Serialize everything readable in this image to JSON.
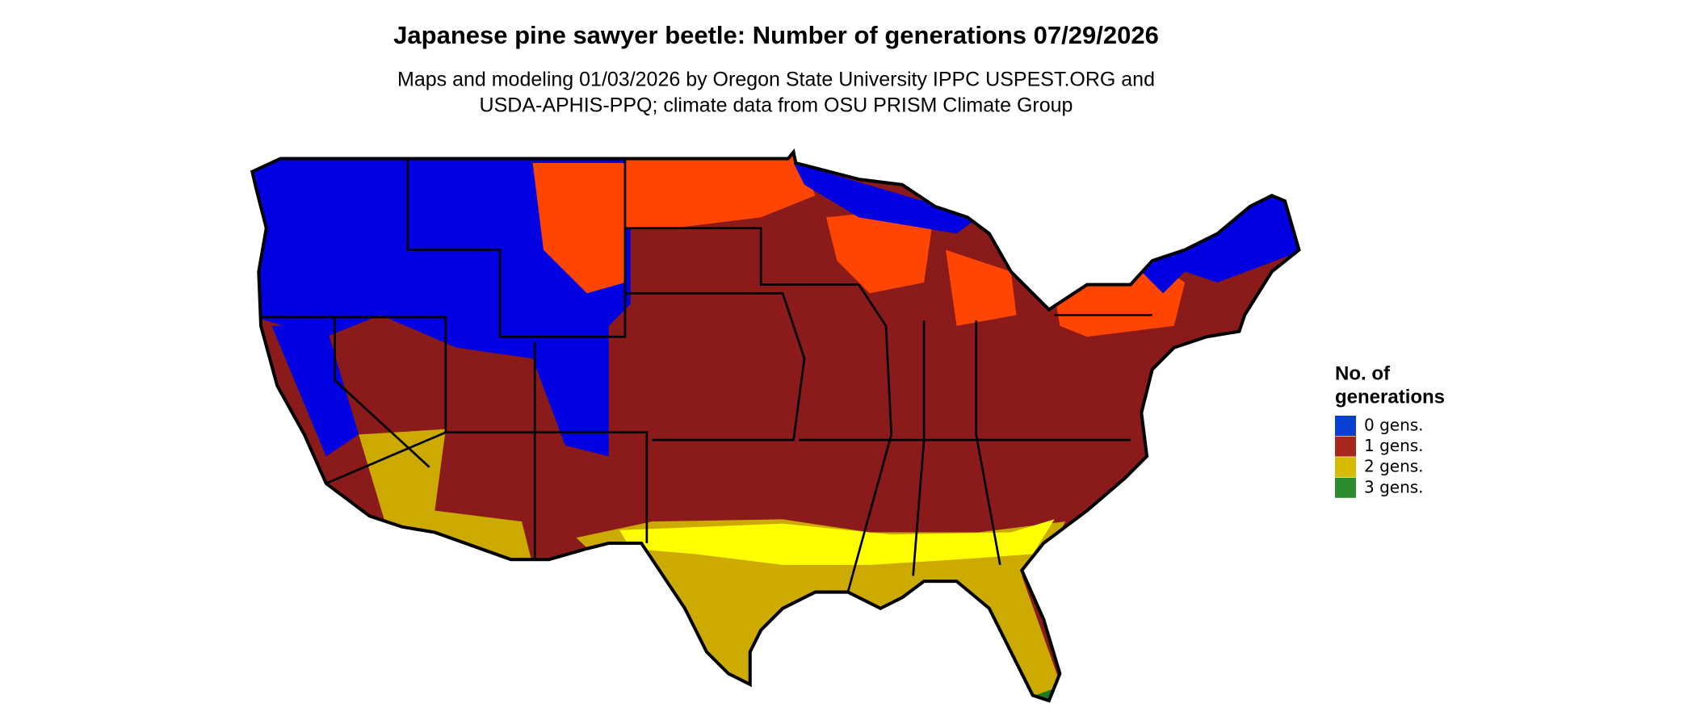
{
  "title": "Japanese pine sawyer beetle: Number of generations 07/29/2026",
  "subtitle": [
    "Maps and modeling 01/03/2026 by Oregon State University IPPC USPEST.ORG and",
    "USDA-APHIS-PPQ; climate data from OSU PRISM Climate Group"
  ],
  "legend": {
    "title": [
      "No. of",
      "generations"
    ],
    "items": [
      {
        "label": "0 gens.",
        "color": "#0a3fd6"
      },
      {
        "label": "1 gens.",
        "color": "#a8261a"
      },
      {
        "label": "2 gens.",
        "color": "#d6bb00"
      },
      {
        "label": "3 gens.",
        "color": "#2a8c2a"
      }
    ]
  }
}
